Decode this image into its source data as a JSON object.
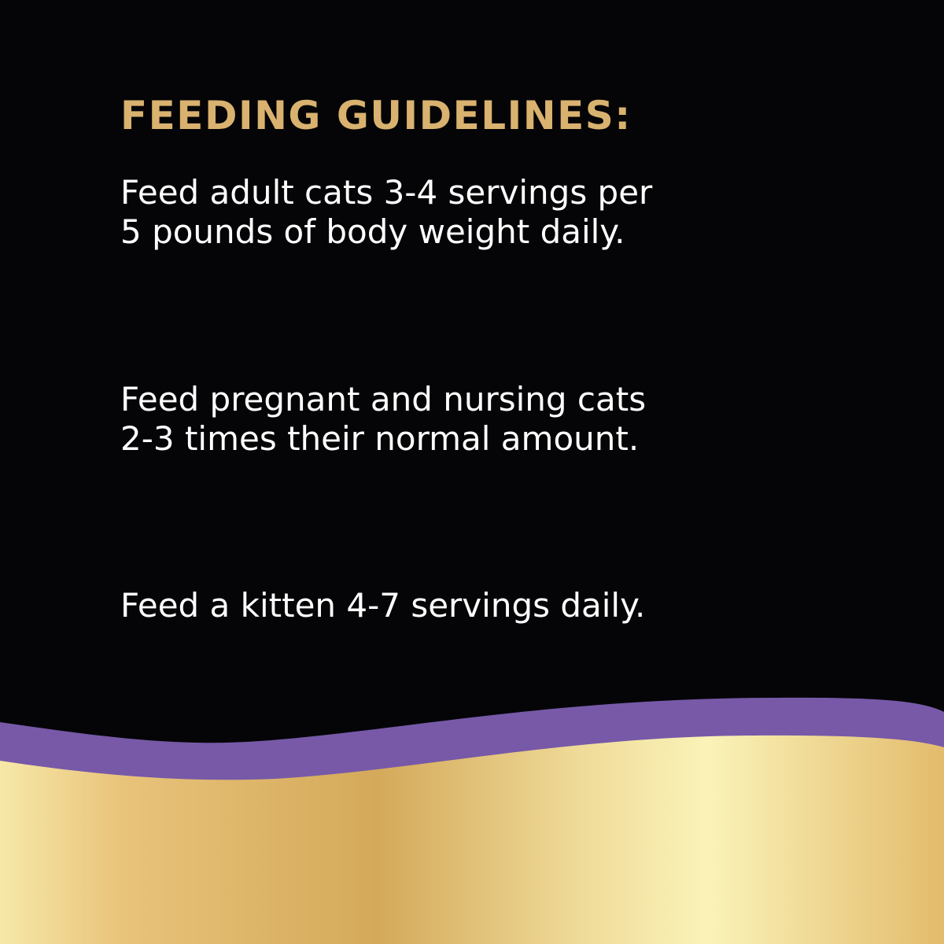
{
  "heading": "FEEDING GUIDELINES:",
  "paragraphs": [
    {
      "lines": [
        "Feed adult cats 3-4 servings per",
        "5 pounds of body weight daily."
      ]
    },
    {
      "lines": [
        "Feed pregnant and nursing cats",
        "2-3 times their normal amount."
      ]
    },
    {
      "lines": [
        "Feed a kitten 4-7 servings daily."
      ]
    }
  ],
  "colors": {
    "background": "#050507",
    "heading": "#d9b26f",
    "body_text": "#ffffff",
    "wave_band": "#7759a8",
    "gold": [
      "#f7e8a8",
      "#e8c37a",
      "#d4a95a",
      "#f0dc9a",
      "#faf3b8",
      "#e3bb6c"
    ]
  }
}
